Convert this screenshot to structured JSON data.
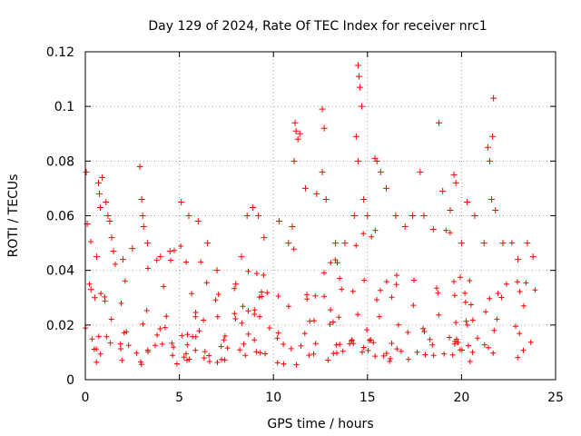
{
  "chart_data": {
    "type": "scatter",
    "title": "Day 129 of 2024, Rate Of TEC Index for receiver nrc1",
    "xlabel": "GPS time / hours",
    "ylabel": "ROTI / TECUs",
    "xlim": [
      0,
      25
    ],
    "ylim": [
      0,
      0.12
    ],
    "x_ticks": [
      0,
      5,
      10,
      15,
      20,
      25
    ],
    "x_tick_labels": [
      "0",
      "5",
      "10",
      "15",
      "20",
      "25"
    ],
    "y_ticks": [
      0,
      0.02,
      0.04,
      0.06,
      0.08,
      0.1,
      0.12
    ],
    "y_tick_labels": [
      "0",
      "0.02",
      "0.04",
      "0.06",
      "0.08",
      "0.1",
      "0.12"
    ],
    "grid": true,
    "marker": "+",
    "color": "#ff0000",
    "series": [
      {
        "name": "ROTI",
        "points": [
          [
            0.05,
            0.076
          ],
          [
            0.1,
            0.057
          ],
          [
            0.3,
            0.033
          ],
          [
            0.5,
            0.03
          ],
          [
            0.6,
            0.045
          ],
          [
            0.7,
            0.072
          ],
          [
            0.75,
            0.068
          ],
          [
            0.8,
            0.063
          ],
          [
            0.9,
            0.074
          ],
          [
            1.1,
            0.065
          ],
          [
            1.2,
            0.06
          ],
          [
            1.3,
            0.058
          ],
          [
            1.4,
            0.052
          ],
          [
            1.5,
            0.047
          ],
          [
            2.0,
            0.044
          ],
          [
            2.5,
            0.048
          ],
          [
            2.9,
            0.078
          ],
          [
            3.0,
            0.066
          ],
          [
            3.05,
            0.06
          ],
          [
            3.1,
            0.056
          ],
          [
            3.3,
            0.05
          ],
          [
            4.0,
            0.045
          ],
          [
            4.5,
            0.047
          ],
          [
            5.1,
            0.065
          ],
          [
            5.5,
            0.06
          ],
          [
            6.0,
            0.058
          ],
          [
            6.5,
            0.05
          ],
          [
            7.0,
            0.04
          ],
          [
            8.0,
            0.035
          ],
          [
            8.3,
            0.045
          ],
          [
            8.6,
            0.06
          ],
          [
            8.9,
            0.063
          ],
          [
            9.2,
            0.06
          ],
          [
            9.5,
            0.052
          ],
          [
            10.3,
            0.058
          ],
          [
            10.8,
            0.05
          ],
          [
            11.0,
            0.056
          ],
          [
            11.1,
            0.08
          ],
          [
            11.15,
            0.094
          ],
          [
            11.2,
            0.091
          ],
          [
            11.3,
            0.088
          ],
          [
            11.4,
            0.09
          ],
          [
            11.7,
            0.07
          ],
          [
            12.3,
            0.068
          ],
          [
            12.6,
            0.099
          ],
          [
            12.7,
            0.092
          ],
          [
            12.6,
            0.076
          ],
          [
            12.8,
            0.066
          ],
          [
            13.3,
            0.05
          ],
          [
            13.8,
            0.05
          ],
          [
            14.3,
            0.06
          ],
          [
            14.4,
            0.089
          ],
          [
            14.5,
            0.115
          ],
          [
            14.55,
            0.111
          ],
          [
            14.6,
            0.107
          ],
          [
            14.7,
            0.1
          ],
          [
            14.5,
            0.08
          ],
          [
            14.8,
            0.066
          ],
          [
            15.0,
            0.06
          ],
          [
            15.4,
            0.081
          ],
          [
            15.5,
            0.08
          ],
          [
            15.7,
            0.076
          ],
          [
            16.0,
            0.07
          ],
          [
            16.5,
            0.06
          ],
          [
            17.0,
            0.056
          ],
          [
            17.4,
            0.06
          ],
          [
            17.8,
            0.076
          ],
          [
            18.0,
            0.06
          ],
          [
            18.5,
            0.055
          ],
          [
            18.8,
            0.094
          ],
          [
            19.0,
            0.069
          ],
          [
            19.4,
            0.062
          ],
          [
            19.6,
            0.075
          ],
          [
            19.7,
            0.072
          ],
          [
            20.0,
            0.05
          ],
          [
            20.3,
            0.065
          ],
          [
            20.7,
            0.06
          ],
          [
            21.2,
            0.05
          ],
          [
            21.4,
            0.085
          ],
          [
            21.5,
            0.08
          ],
          [
            21.6,
            0.066
          ],
          [
            21.65,
            0.089
          ],
          [
            21.7,
            0.103
          ],
          [
            21.8,
            0.062
          ],
          [
            22.2,
            0.05
          ],
          [
            23.0,
            0.044
          ],
          [
            23.5,
            0.05
          ],
          [
            23.8,
            0.045
          ]
        ]
      }
    ]
  }
}
